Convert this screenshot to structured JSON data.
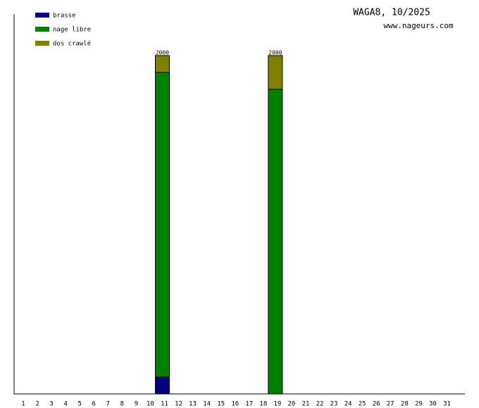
{
  "chart_data": {
    "type": "stacked-bar",
    "title": "WAGA8, 10/2025",
    "subtitle": "www.nageurs.com",
    "categories": [
      "1",
      "2",
      "3",
      "4",
      "5",
      "6",
      "7",
      "8",
      "9",
      "10",
      "11",
      "12",
      "13",
      "14",
      "15",
      "16",
      "17",
      "18",
      "19",
      "20",
      "21",
      "22",
      "23",
      "24",
      "25",
      "26",
      "27",
      "28",
      "29",
      "30",
      "31"
    ],
    "series": [
      {
        "name": "brasse",
        "color": "#000080",
        "values": [
          null,
          null,
          null,
          null,
          null,
          null,
          null,
          null,
          null,
          null,
          100,
          null,
          null,
          null,
          null,
          null,
          null,
          null,
          null,
          null,
          null,
          null,
          null,
          null,
          null,
          null,
          null,
          null,
          null,
          null,
          null
        ]
      },
      {
        "name": "nage libre",
        "color": "#008000",
        "values": [
          null,
          null,
          null,
          null,
          null,
          null,
          null,
          null,
          null,
          null,
          1800,
          null,
          null,
          null,
          null,
          null,
          null,
          null,
          1800,
          null,
          null,
          null,
          null,
          null,
          null,
          null,
          null,
          null,
          null,
          null,
          null
        ]
      },
      {
        "name": "dos crawlé",
        "color": "#808000",
        "values": [
          null,
          null,
          null,
          null,
          null,
          null,
          null,
          null,
          null,
          null,
          100,
          null,
          null,
          null,
          null,
          null,
          null,
          null,
          200,
          null,
          null,
          null,
          null,
          null,
          null,
          null,
          null,
          null,
          null,
          null,
          null
        ]
      }
    ],
    "totals": [
      null,
      null,
      null,
      null,
      null,
      null,
      null,
      null,
      null,
      null,
      2000,
      null,
      null,
      null,
      null,
      null,
      null,
      null,
      2000,
      null,
      null,
      null,
      null,
      null,
      null,
      null,
      null,
      null,
      null,
      null,
      null
    ],
    "ylim": [
      0,
      2245
    ],
    "legend": "top-left"
  }
}
